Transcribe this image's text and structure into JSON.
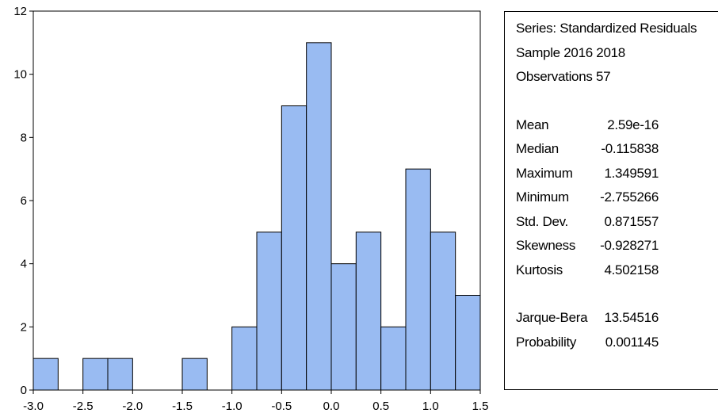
{
  "chart_data": {
    "type": "bar",
    "histogram": true,
    "bins": [
      {
        "start": -3.0,
        "end": -2.75,
        "count": 1
      },
      {
        "start": -2.75,
        "end": -2.5,
        "count": 0
      },
      {
        "start": -2.5,
        "end": -2.25,
        "count": 1
      },
      {
        "start": -2.25,
        "end": -2.0,
        "count": 1
      },
      {
        "start": -2.0,
        "end": -1.75,
        "count": 0
      },
      {
        "start": -1.75,
        "end": -1.5,
        "count": 0
      },
      {
        "start": -1.5,
        "end": -1.25,
        "count": 1
      },
      {
        "start": -1.25,
        "end": -1.0,
        "count": 0
      },
      {
        "start": -1.0,
        "end": -0.75,
        "count": 2
      },
      {
        "start": -0.75,
        "end": -0.5,
        "count": 5
      },
      {
        "start": -0.5,
        "end": -0.25,
        "count": 9
      },
      {
        "start": -0.25,
        "end": 0.0,
        "count": 11
      },
      {
        "start": 0.0,
        "end": 0.25,
        "count": 4
      },
      {
        "start": 0.25,
        "end": 0.5,
        "count": 5
      },
      {
        "start": 0.5,
        "end": 0.75,
        "count": 2
      },
      {
        "start": 0.75,
        "end": 1.0,
        "count": 7
      },
      {
        "start": 1.0,
        "end": 1.25,
        "count": 5
      },
      {
        "start": 1.25,
        "end": 1.5,
        "count": 3
      }
    ],
    "xlim": [
      -3.0,
      1.5
    ],
    "ylim": [
      0,
      12
    ],
    "x_ticks": [
      "-3.0",
      "-2.5",
      "-2.0",
      "-1.5",
      "-1.0",
      "-0.5",
      "0.0",
      "0.5",
      "1.0",
      "1.5"
    ],
    "y_ticks": [
      "0",
      "2",
      "4",
      "6",
      "8",
      "10",
      "12"
    ],
    "bar_color": "#99bbf2",
    "grid": false
  },
  "stats": {
    "series": "Series: Standardized Residuals",
    "sample": "Sample 2016 2018",
    "observations": "Observations 57",
    "rows": [
      {
        "label": "Mean",
        "value": "2.59e-16"
      },
      {
        "label": "Median",
        "value": "-0.115838"
      },
      {
        "label": "Maximum",
        "value": "1.349591"
      },
      {
        "label": "Minimum",
        "value": "-2.755266"
      },
      {
        "label": "Std. Dev.",
        "value": "0.871557"
      },
      {
        "label": "Skewness",
        "value": "-0.928271"
      },
      {
        "label": "Kurtosis",
        "value": "4.502158"
      }
    ],
    "test_rows": [
      {
        "label": "Jarque-Bera",
        "value": "13.54516"
      },
      {
        "label": "Probability",
        "value": "0.001145"
      }
    ]
  }
}
